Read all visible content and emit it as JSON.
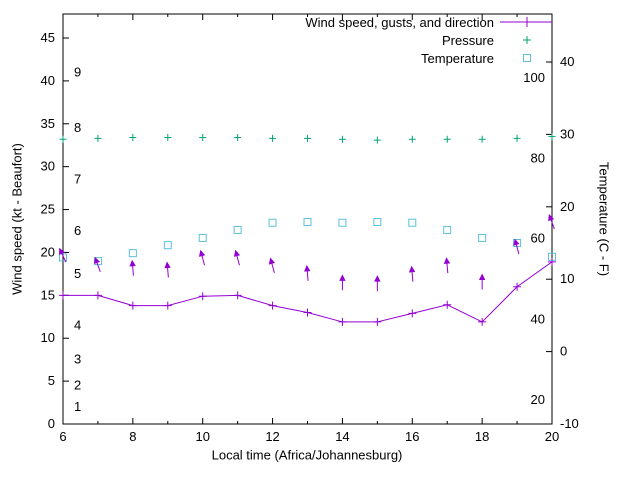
{
  "figure": {
    "xlabel": "Local time (Africa/Johannesburg)",
    "ylabel_left": "Wind speed (kt - Beaufort)",
    "ylabel_right": "Temperature (C - F)",
    "background": "#ffffff",
    "border_color": "#000000"
  },
  "colors": {
    "wind": "#9400d3",
    "pressure": "#00a375",
    "temperature": "#5bc0de",
    "text": "#000000"
  },
  "legend": [
    {
      "label": "Wind speed, gusts, and direction",
      "marker": "line-plus",
      "color_key": "wind"
    },
    {
      "label": "Pressure",
      "marker": "plus",
      "color_key": "pressure"
    },
    {
      "label": "Temperature",
      "marker": "square",
      "color_key": "temperature"
    }
  ],
  "chart_data": {
    "type": "line",
    "title": "",
    "xlabel": "Local time (Africa/Johannesburg)",
    "ylabel_left": "Wind speed (kt - Beaufort)",
    "ylabel_right": "Temperature (C - F)",
    "grid": false,
    "legend_position": "top-right-inside",
    "x": [
      6,
      7,
      8,
      9,
      10,
      11,
      12,
      13,
      14,
      15,
      16,
      17,
      18,
      19,
      20
    ],
    "axes": {
      "x": {
        "min": 6,
        "max": 20,
        "major_ticks": [
          6,
          8,
          10,
          12,
          14,
          16,
          18,
          20
        ],
        "minor_ticks": [
          7,
          9,
          11,
          13,
          15,
          17,
          19
        ]
      },
      "y_left": {
        "min": 0,
        "max": 47.8,
        "ticks": [
          0,
          5,
          10,
          15,
          20,
          25,
          30,
          35,
          40,
          45
        ],
        "unit": "kt"
      },
      "y_right": {
        "min": -10,
        "max": 46.6,
        "ticks": [
          -10,
          0,
          10,
          20,
          30,
          40
        ],
        "unit": "C"
      }
    },
    "series": [
      {
        "name": "Wind speed (kt)",
        "axis": "left",
        "style": "line-plus",
        "color_key": "wind",
        "values": [
          15,
          15,
          13.8,
          13.8,
          14.9,
          15,
          13.8,
          13,
          11.9,
          11.9,
          12.9,
          13.9,
          11.9,
          16,
          18.9
        ]
      },
      {
        "name": "Wind gusts with direction arrows (kt)",
        "axis": "left",
        "style": "arrow",
        "color_key": "wind",
        "values": [
          19.6,
          18.5,
          18.1,
          17.9,
          19.3,
          19.3,
          18.4,
          17.5,
          16.4,
          16.3,
          17.4,
          18.4,
          16.5,
          20.6,
          23.5
        ],
        "arrow_angles_deg": [
          -25,
          -20,
          -5,
          -5,
          -15,
          -15,
          -15,
          -5,
          0,
          0,
          -5,
          -5,
          0,
          -15,
          -20
        ]
      },
      {
        "name": "Pressure (plotted height, left-axis units)",
        "axis": "left",
        "style": "plus",
        "color_key": "pressure",
        "values": [
          33.2,
          33.3,
          33.4,
          33.4,
          33.4,
          33.4,
          33.3,
          33.3,
          33.2,
          33.1,
          33.2,
          33.2,
          33.2,
          33.3,
          33.5
        ]
      },
      {
        "name": "Temperature (C)",
        "axis": "right",
        "style": "square",
        "color_key": "temperature",
        "values": [
          13,
          12.5,
          13.6,
          14.7,
          15.7,
          16.8,
          17.8,
          17.9,
          17.8,
          17.9,
          17.8,
          16.8,
          15.7,
          15,
          13.1
        ]
      }
    ],
    "beaufort_labels": [
      {
        "text": "1",
        "kt": 2
      },
      {
        "text": "2",
        "kt": 4.5
      },
      {
        "text": "3",
        "kt": 7.5
      },
      {
        "text": "4",
        "kt": 11.5
      },
      {
        "text": "5",
        "kt": 17.5
      },
      {
        "text": "6",
        "kt": 22.5
      },
      {
        "text": "7",
        "kt": 28.5
      },
      {
        "text": "8",
        "kt": 34.5
      },
      {
        "text": "9",
        "kt": 41
      }
    ],
    "fahrenheit_labels": [
      {
        "text": "20",
        "c": -6.7
      },
      {
        "text": "40",
        "c": 4.4
      },
      {
        "text": "60",
        "c": 15.6
      },
      {
        "text": "80",
        "c": 26.7
      },
      {
        "text": "100",
        "c": 37.8
      }
    ]
  }
}
